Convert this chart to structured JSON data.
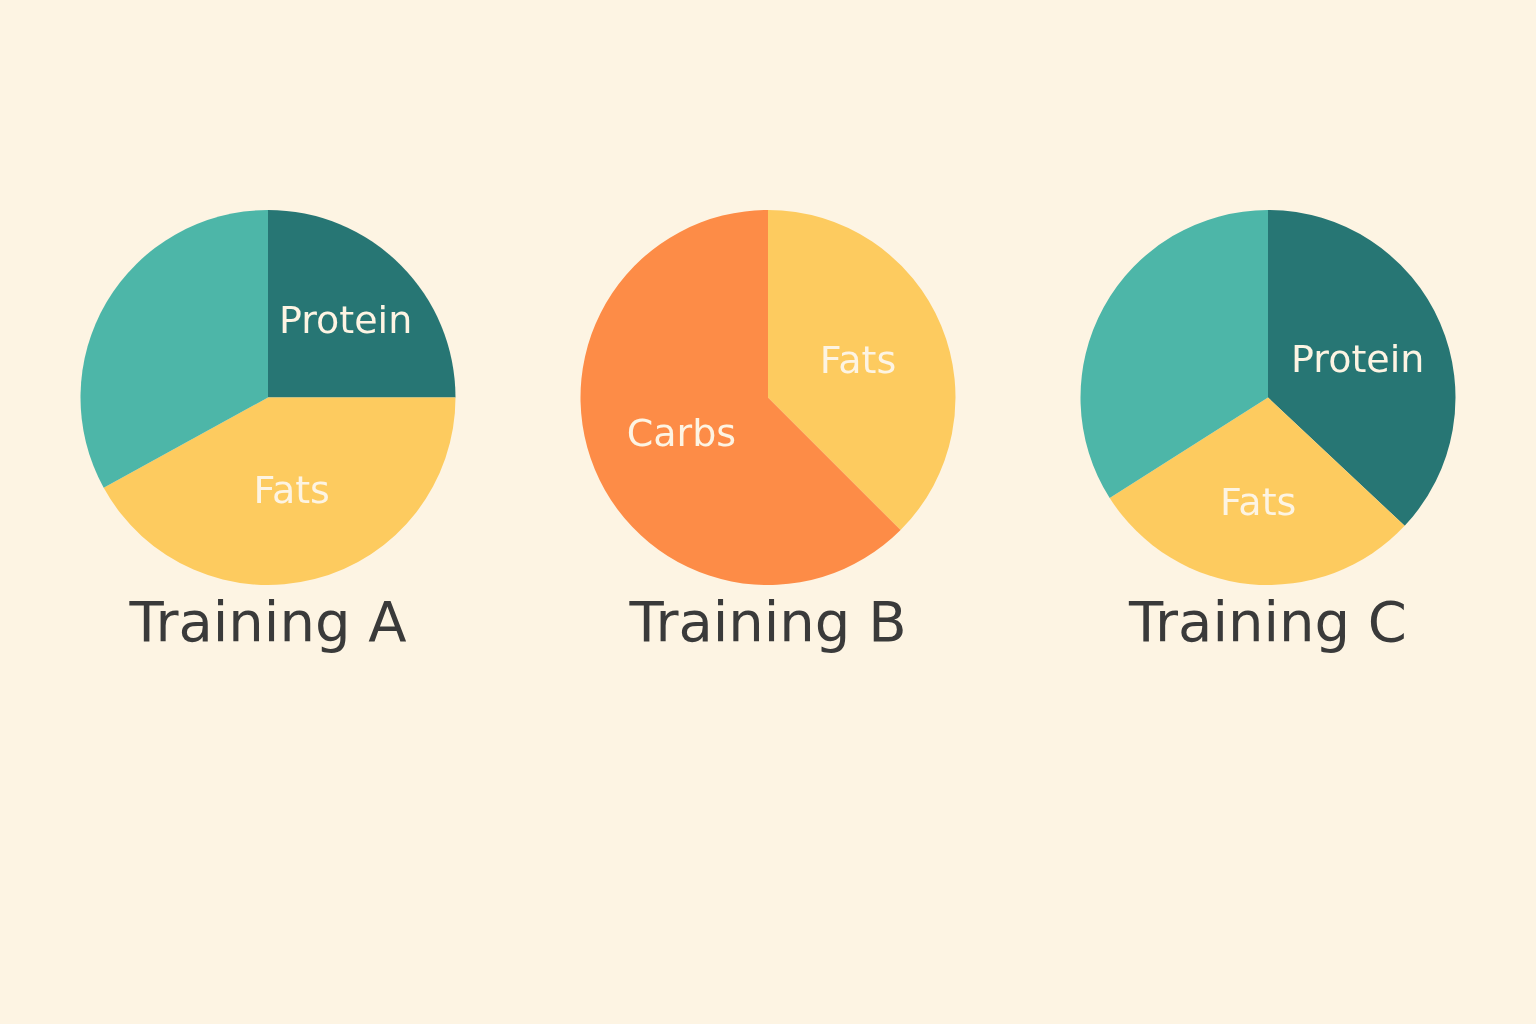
{
  "chart_data": [
    {
      "type": "pie",
      "title": "Training A",
      "categories": [
        "Protein",
        "Fats",
        null
      ],
      "values": [
        25,
        42,
        33
      ],
      "colors": [
        "#277674",
        "#fdcb5f",
        "#4db6a8"
      ]
    },
    {
      "type": "pie",
      "title": "Training B",
      "categories": [
        "Fats",
        "Carbs"
      ],
      "values": [
        37.5,
        62.5
      ],
      "colors": [
        "#fdcb5f",
        "#fd8c47"
      ]
    },
    {
      "type": "pie",
      "title": "Training C",
      "categories": [
        "Protein",
        "Fats",
        null
      ],
      "values": [
        37,
        29,
        34
      ],
      "colors": [
        "#277674",
        "#fdcb5f",
        "#4db6a8"
      ]
    }
  ]
}
